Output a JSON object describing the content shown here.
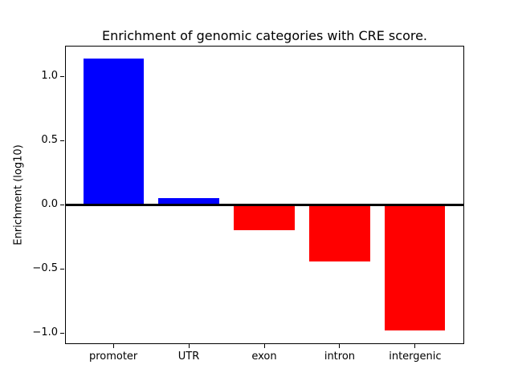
{
  "chart_data": {
    "type": "bar",
    "title": "Enrichment of genomic categories with CRE score.",
    "xlabel": "",
    "ylabel": "Enrichment (log10)",
    "categories": [
      "promoter",
      "UTR",
      "exon",
      "intron",
      "intergenic"
    ],
    "values": [
      1.14,
      0.05,
      -0.2,
      -0.44,
      -0.98
    ],
    "bar_colors": [
      "#0000ff",
      "#0000ff",
      "#ff0000",
      "#ff0000",
      "#ff0000"
    ],
    "positive_color": "#0000ff",
    "negative_color": "#ff0000",
    "yticks": [
      1.0,
      0.5,
      0.0,
      -0.5,
      -1.0
    ],
    "ytick_labels": [
      "1.0",
      "0.5",
      "0.0",
      "−0.5",
      "−1.0"
    ],
    "ylim": [
      -1.08,
      1.24
    ],
    "zero_line_color": "#000000",
    "background_color": "#ffffff",
    "grid": false,
    "legend_position": "none"
  }
}
